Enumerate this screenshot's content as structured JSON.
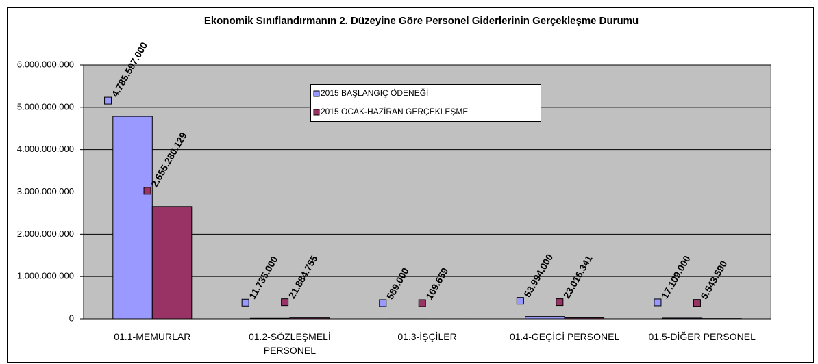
{
  "chart_data": {
    "type": "bar",
    "title": "Ekonomik Sınıflandırmanın 2. Düzeyine Göre Personel Giderlerinin Gerçekleşme Durumu",
    "categories": [
      "01.1-MEMURLAR",
      "01.2-SÖZLEŞMELİ PERSONEL",
      "01.3-İŞÇİLER",
      "01.4-GEÇİCİ PERSONEL",
      "01.5-DİĞER PERSONEL"
    ],
    "series": [
      {
        "name": "2015 BAŞLANGIÇ ÖDENEĞİ",
        "color": "#9999ff",
        "values": [
          4785597000,
          11735000,
          589000,
          53994000,
          17109000
        ],
        "value_labels": [
          "4.785.597.000",
          "11.735.000",
          "589.000",
          "53.994.000",
          "17.109.000"
        ]
      },
      {
        "name": "2015 OCAK-HAZİRAN GERÇEKLEŞME",
        "color": "#993366",
        "values": [
          2655280129,
          21884755,
          169659,
          23016341,
          5543590
        ],
        "value_labels": [
          "2.655.280.129",
          "21.884.755",
          "169.659",
          "23.016.341",
          "5.543.590"
        ]
      }
    ],
    "ylim": [
      0,
      6000000000
    ],
    "yticks": [
      0,
      {
        "value": 1000000000,
        "label": "1.000.000.000"
      },
      {
        "value": 2000000000,
        "label": "2.000.000.000"
      },
      {
        "value": 3000000000,
        "label": "3.000.000.000"
      },
      {
        "value": 4000000000,
        "label": "4.000.000.000"
      },
      {
        "value": 5000000000,
        "label": "5.000.000.000"
      },
      {
        "value": 6000000000,
        "label": "6.000.000.000"
      }
    ],
    "grid": true
  }
}
